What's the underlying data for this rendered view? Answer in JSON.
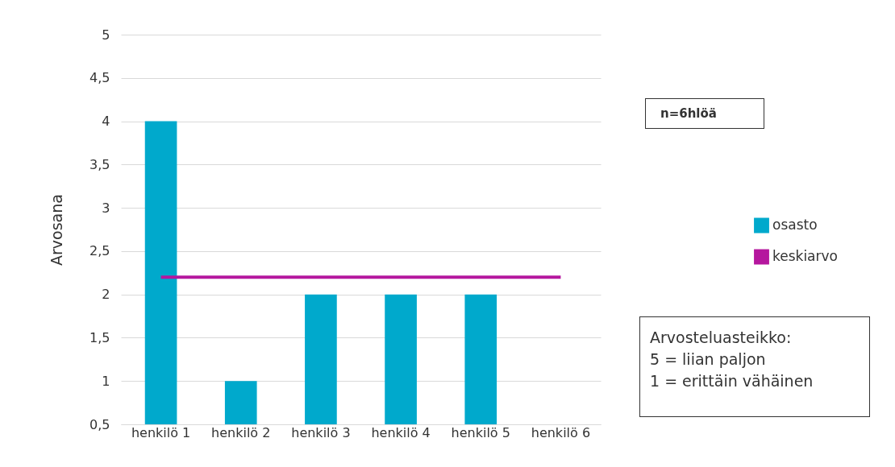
{
  "chart_data": {
    "type": "bar",
    "ylabel": "Arvosana",
    "categories": [
      "henkilö 1",
      "henkilö 2",
      "henkilö 3",
      "henkilö 4",
      "henkilö 5",
      "henkilö 6"
    ],
    "series": [
      {
        "name": "osasto",
        "color": "#00a9cc",
        "values": [
          4,
          1,
          2,
          2,
          2,
          0.5
        ]
      },
      {
        "name": "keskiarvo",
        "type": "line",
        "color": "#b5179e",
        "values": [
          2.2,
          2.2,
          2.2,
          2.2,
          2.2,
          2.2
        ]
      }
    ],
    "ylim": [
      0.5,
      5
    ],
    "yticks": [
      {
        "value": 0.5,
        "label": "0,5"
      },
      1,
      {
        "value": 1.5,
        "label": "1,5"
      },
      2,
      {
        "value": 2.5,
        "label": "2,5"
      },
      3,
      {
        "value": 3.5,
        "label": "3,5"
      },
      4,
      {
        "value": 4.5,
        "label": "4,5"
      },
      5
    ],
    "grid": "y",
    "legend": "right",
    "annotations": [
      "n=6hlöä",
      "Arvosteluasteikko:\n5 = liian paljon\n1 = erittäin vähäinen"
    ]
  }
}
